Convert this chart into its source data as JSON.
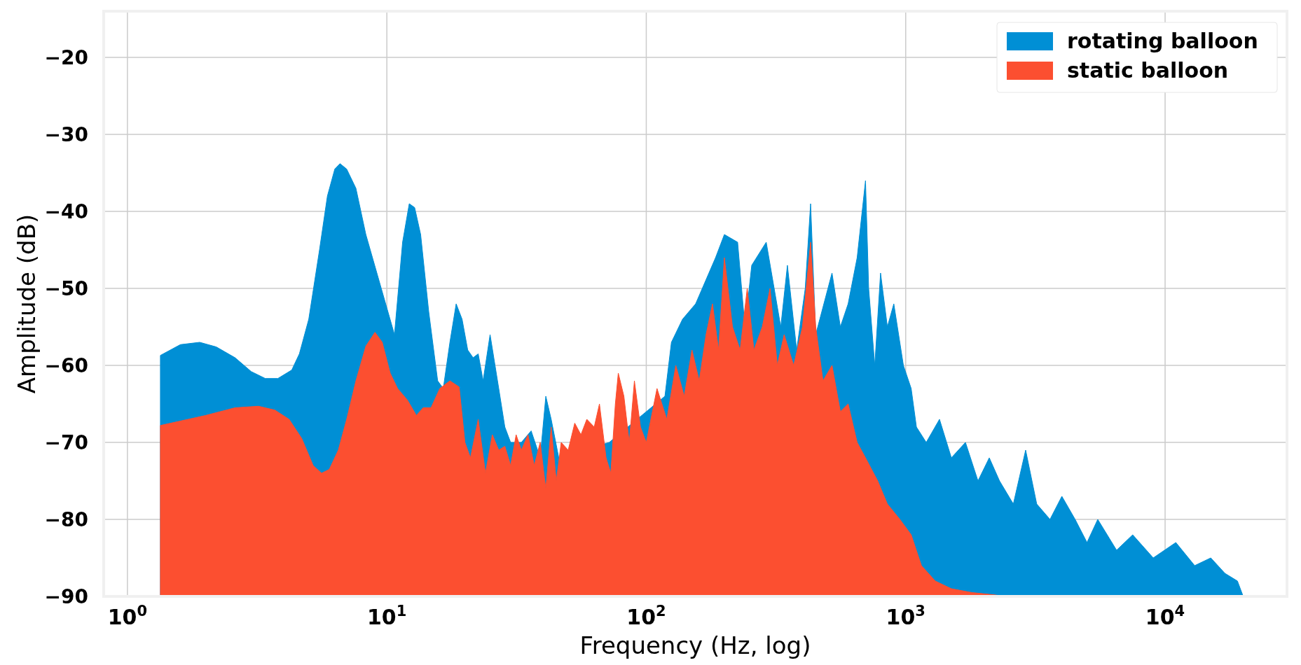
{
  "chart_data": {
    "type": "area",
    "xlabel": "Frequency (Hz, log)",
    "ylabel": "Amplitude (dB)",
    "log": "x",
    "grid": true,
    "legend": "top right",
    "xlim": [
      0.81,
      29500
    ],
    "ylim": [
      -90,
      -14
    ],
    "xticks": [
      {
        "value": 1,
        "label": "10$^{0}$"
      },
      {
        "value": 10,
        "label": "10$^{1}$"
      },
      {
        "value": 100,
        "label": "10$^{2}$"
      },
      {
        "value": 1000,
        "label": "10$^{3}$"
      },
      {
        "value": 10000,
        "label": "10$^{4}$"
      }
    ],
    "yticks": [
      -90,
      -80,
      -70,
      -60,
      -50,
      -40,
      -30,
      -20
    ],
    "series": [
      {
        "name": "rotating balloon",
        "color": "#008fd5",
        "x": [
          1.34,
          1.34,
          1.6,
          1.9,
          2.2,
          2.6,
          3.0,
          3.4,
          3.8,
          4.3,
          4.6,
          5.0,
          5.5,
          5.9,
          6.3,
          6.6,
          7.0,
          7.6,
          8.3,
          9.2,
          10.1,
          10.7,
          11.5,
          12.2,
          12.8,
          13.5,
          14.5,
          15.7,
          16.5,
          17.5,
          18.5,
          19.5,
          20.5,
          21.5,
          22.5,
          23.5,
          25,
          27,
          28.5,
          30,
          33,
          36,
          39,
          41,
          43,
          46,
          50,
          55,
          60,
          65,
          72,
          80,
          90,
          95,
          100,
          105,
          110,
          118,
          125,
          130,
          138,
          145,
          155,
          165,
          175,
          185,
          192,
          200,
          210,
          225,
          240,
          255,
          270,
          290,
          310,
          330,
          350,
          380,
          410,
          430,
          450,
          480,
          520,
          560,
          600,
          650,
          700,
          720,
          760,
          800,
          850,
          900,
          980,
          1050,
          1100,
          1200,
          1350,
          1500,
          1700,
          1900,
          2100,
          2300,
          2600,
          2900,
          3200,
          3600,
          4000,
          4500,
          5000,
          5500,
          6500,
          7500,
          9000,
          11000,
          13000,
          15000,
          17000,
          19000,
          20000
        ],
        "values": [
          -90,
          -58.7,
          -57.3,
          -57,
          -57.6,
          -59,
          -60.8,
          -61.7,
          -61.7,
          -60.6,
          -58.5,
          -54,
          -45,
          -38,
          -34.5,
          -33.8,
          -34.5,
          -37,
          -43,
          null,
          null,
          -56,
          -44,
          -39,
          -39.5,
          -43,
          -53,
          -62,
          -63,
          -57,
          -52,
          -54,
          -58,
          -59,
          -58.5,
          -62,
          -56,
          -63,
          -68,
          -70,
          -70,
          -68.5,
          -72,
          -64,
          -67,
          -72,
          null,
          null,
          null,
          null,
          -70,
          null,
          null,
          null,
          null,
          null,
          null,
          -64,
          -57,
          null,
          -54,
          null,
          -52,
          null,
          null,
          -46,
          null,
          -43,
          null,
          -44,
          -55,
          -47,
          null,
          -44,
          null,
          -55,
          -47,
          -58,
          -50,
          -39,
          -56,
          null,
          -48,
          -55,
          -52,
          -46,
          -36,
          -50,
          -60,
          -48,
          -55,
          -52,
          -60,
          -63,
          -68,
          -70,
          -67,
          -72,
          -70,
          -75,
          -72,
          -75,
          -78,
          -71,
          -78,
          -80,
          -77,
          -80,
          -83,
          -80,
          -84,
          -82,
          -85,
          -83,
          -86,
          -85,
          -87,
          -88,
          -90
        ]
      },
      {
        "name": "static balloon",
        "color": "#fc4f30",
        "x": [
          1.34,
          1.34,
          2,
          2.6,
          3.2,
          3.7,
          4.2,
          4.7,
          5.2,
          5.6,
          6.0,
          6.5,
          7.0,
          7.6,
          8.3,
          9.0,
          9.6,
          10.3,
          11,
          12,
          13,
          13.8,
          14.8,
          16,
          17.5,
          19,
          20,
          21,
          22.5,
          24,
          25.5,
          27,
          28.5,
          30,
          31.5,
          33,
          35,
          37,
          39,
          41,
          43,
          45,
          47,
          50,
          53,
          56,
          59,
          63,
          66,
          70,
          73,
          76,
          78,
          82,
          86,
          90,
          95,
          100,
          110,
          120,
          130,
          140,
          150,
          160,
          170,
          180,
          190,
          200,
          215,
          230,
          245,
          260,
          280,
          300,
          320,
          340,
          370,
          400,
          430,
          450,
          480,
          520,
          560,
          600,
          650,
          700,
          780,
          850,
          950,
          1050,
          1150,
          1300,
          1500,
          1800,
          2200,
          2400
        ],
        "values": [
          -90,
          -67.8,
          -66.5,
          -65.5,
          -65.3,
          -65.8,
          -67,
          -69.5,
          -73,
          -74,
          -73.5,
          -71,
          -67,
          -62,
          -57.5,
          -55.7,
          -57,
          -61,
          -63,
          -64.5,
          -66.5,
          -65.5,
          -65.5,
          -63,
          -62,
          -62.8,
          -70,
          -72,
          -67,
          -74,
          -69,
          -71,
          -70.5,
          -73,
          -69,
          -71,
          -69,
          -73,
          -70,
          -76,
          -68,
          -75,
          -70,
          -71,
          -67.5,
          -69,
          -67,
          -68,
          -65,
          -72,
          -74,
          -65,
          -61,
          -64,
          -70,
          -62,
          -68,
          -70,
          -63,
          -67,
          -60,
          -64,
          -58,
          -62,
          -56,
          -52,
          -58,
          -46,
          -55,
          -58,
          -50,
          -58,
          -55,
          -50,
          -60,
          -56,
          -60,
          -55,
          -44,
          -55,
          -62,
          -60,
          -66,
          -65,
          -70,
          -72,
          -75,
          -78,
          -80,
          -82,
          -86,
          -88,
          -89,
          -89.5,
          -89.8,
          -90
        ]
      }
    ]
  }
}
